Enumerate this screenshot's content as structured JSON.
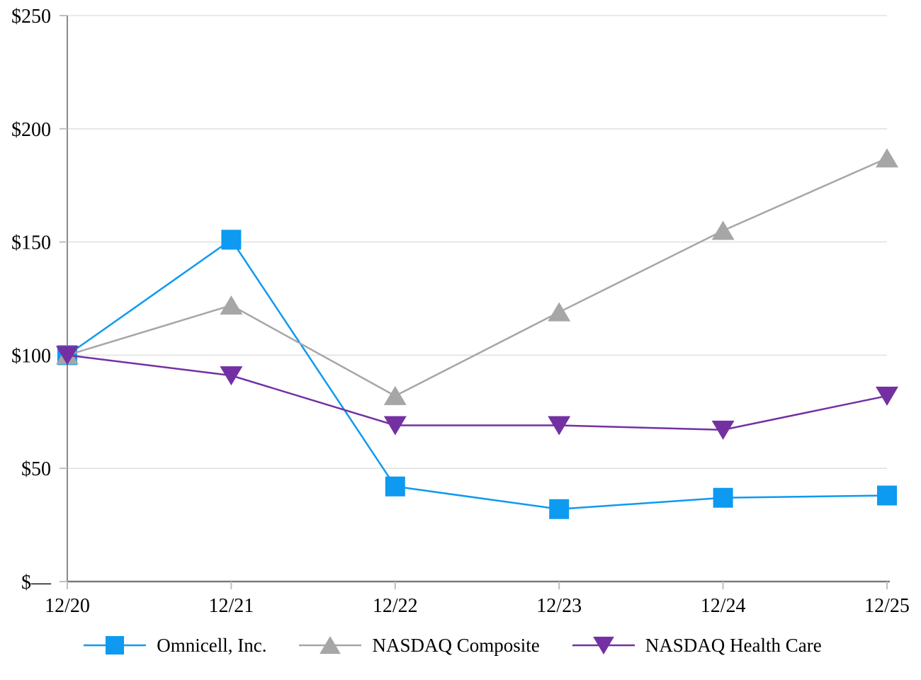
{
  "chart_data": {
    "type": "line",
    "title": "",
    "x_labels": [
      "12/20",
      "12/21",
      "12/22",
      "12/23",
      "12/24",
      "12/25"
    ],
    "y_axis": {
      "ticks": [
        {
          "label": "$250",
          "value": 250
        },
        {
          "label": "$200",
          "value": 200
        },
        {
          "label": "$150",
          "value": 150
        },
        {
          "label": "$100",
          "value": 100
        },
        {
          "label": "$50",
          "value": 50
        },
        {
          "label": "$—",
          "value": 0
        }
      ],
      "ylim": [
        0,
        250
      ]
    },
    "grid": true,
    "legend_position": "bottom",
    "series": [
      {
        "name": "Omnicell, Inc.",
        "marker": "square",
        "color": "#0E9AF0",
        "values": [
          100,
          151,
          42,
          32,
          37,
          38
        ]
      },
      {
        "name": "NASDAQ Composite",
        "marker": "triangle-up",
        "color": "#A6A6A6",
        "values": [
          100,
          122,
          82,
          119,
          155,
          187
        ]
      },
      {
        "name": "NASDAQ Health Care",
        "marker": "triangle-down",
        "color": "#7430A3",
        "values": [
          100,
          91,
          69,
          69,
          67,
          82
        ]
      }
    ],
    "colors": {
      "gridline": "#E2E2E2",
      "axis": "#7A7A7A",
      "tick": "#BFBFBF",
      "text": "#000000"
    }
  }
}
